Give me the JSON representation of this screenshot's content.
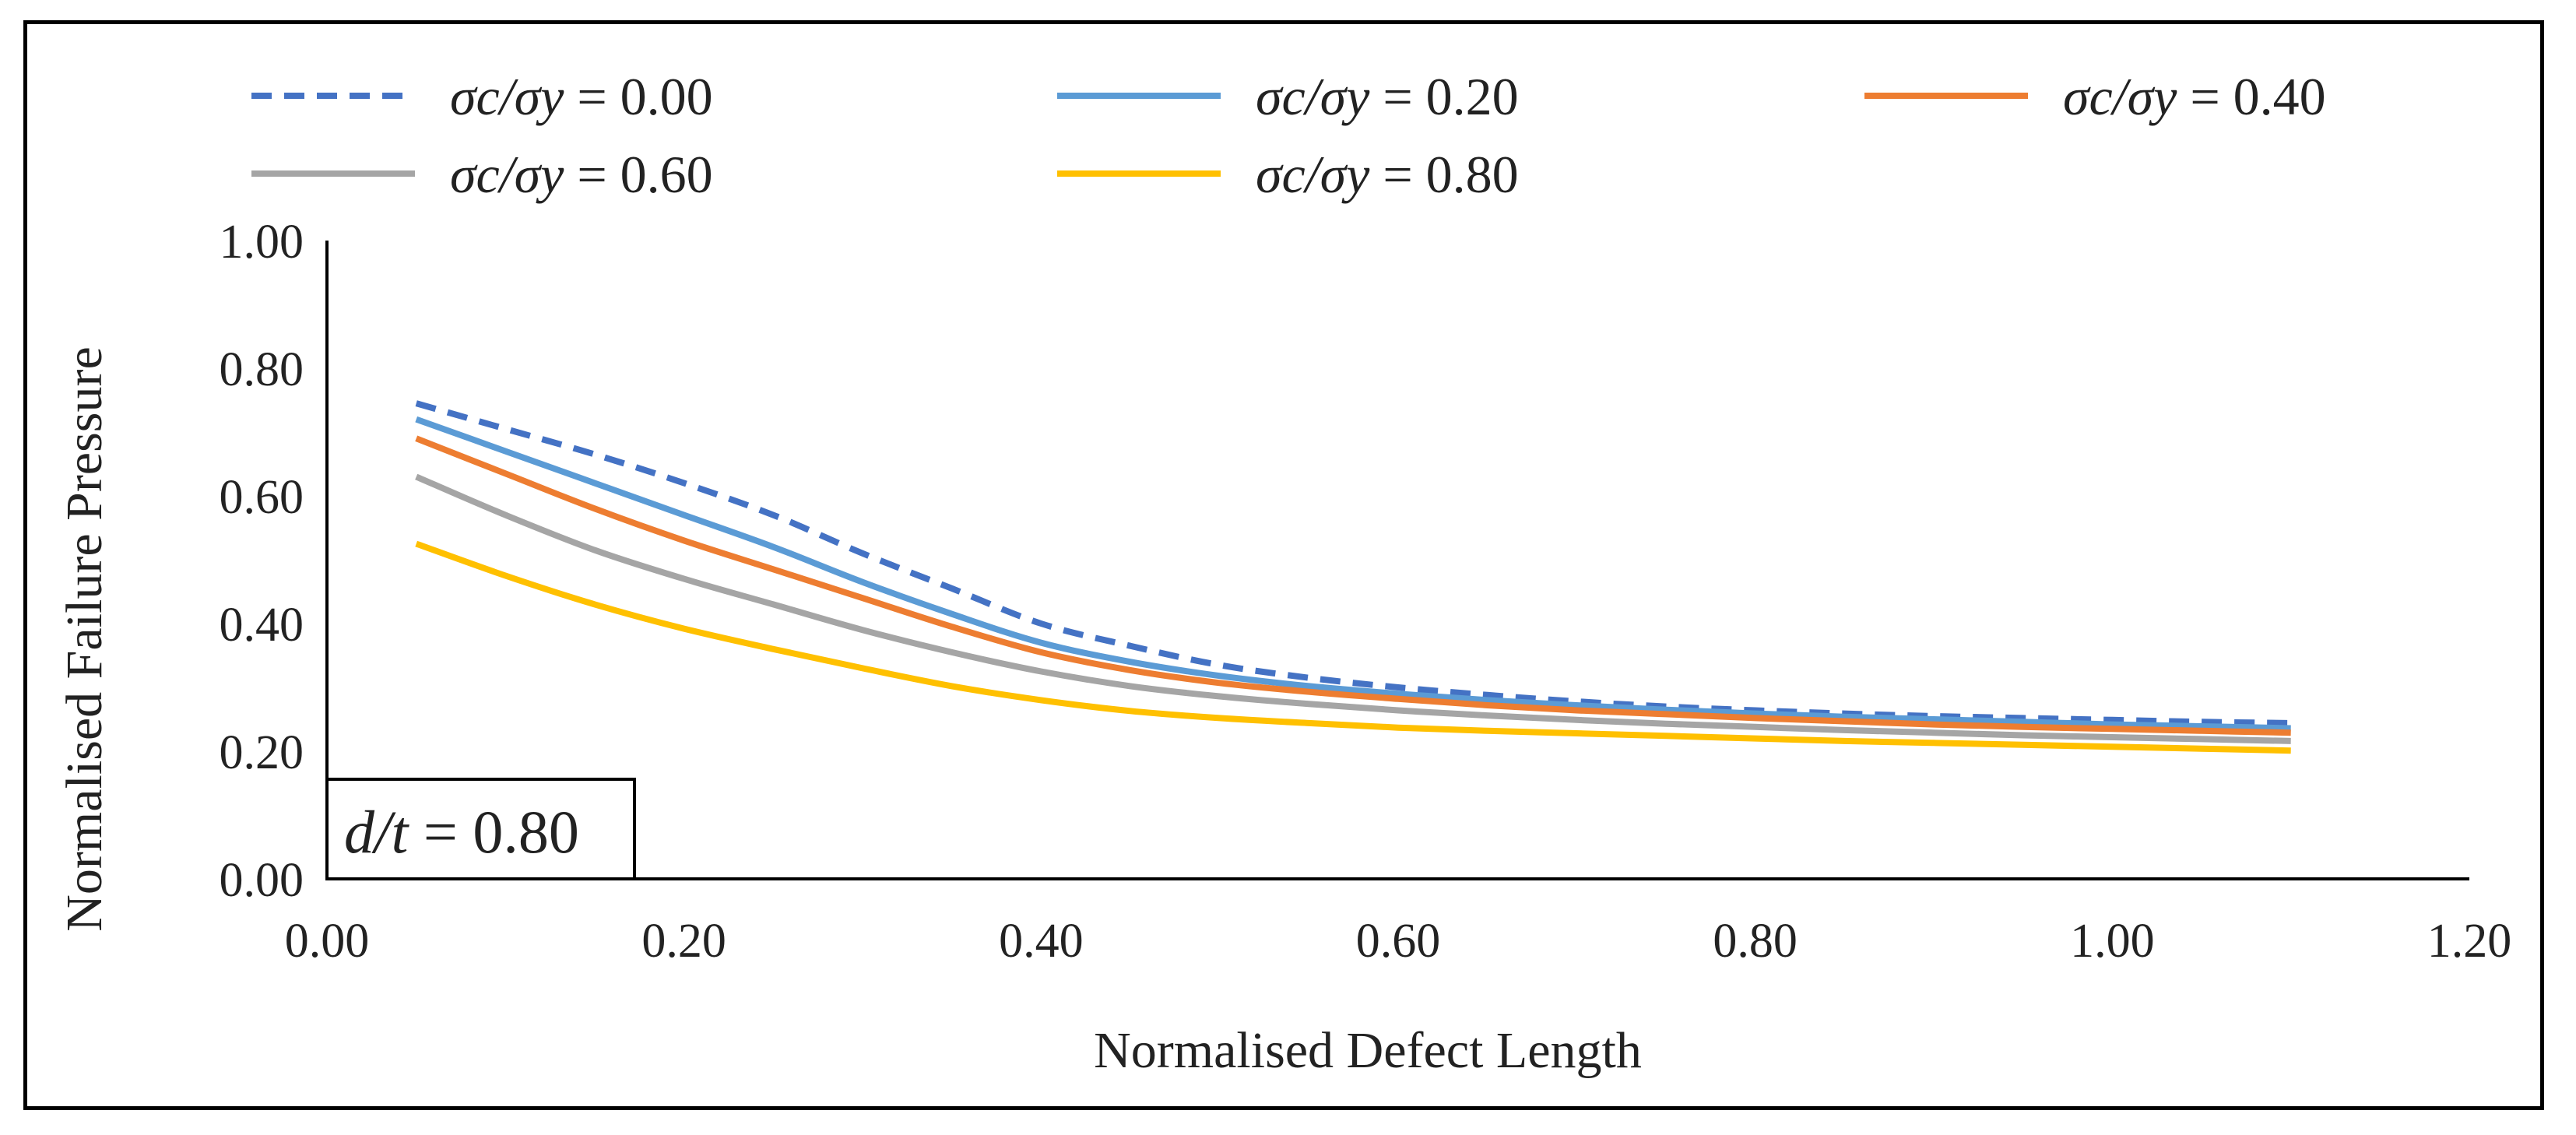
{
  "chart_data": {
    "type": "line",
    "title": "",
    "xlabel": "Normalised Defect Length",
    "ylabel": "Normalised Failure Pressure",
    "xlim": [
      0.0,
      1.2
    ],
    "ylim": [
      0.0,
      1.0
    ],
    "xticks": [
      "0.00",
      "0.20",
      "0.40",
      "0.60",
      "0.80",
      "1.00",
      "1.20"
    ],
    "yticks": [
      "0.00",
      "0.20",
      "0.40",
      "0.60",
      "0.80",
      "1.00"
    ],
    "grid": false,
    "legend_position": "top",
    "annotation": {
      "italic": "d/t",
      "rest": " = 0.80"
    },
    "series": [
      {
        "name": "σc/σy = 0.00",
        "legend_italic": "σc/σy",
        "legend_value": " = 0.00",
        "color": "#4472C4",
        "dashed": true,
        "x": [
          0.05,
          0.1,
          0.15,
          0.2,
          0.25,
          0.3,
          0.35,
          0.4,
          0.45,
          0.5,
          0.55,
          0.6,
          0.65,
          0.7,
          0.75,
          0.8,
          0.85,
          0.9,
          0.95,
          1.0,
          1.05,
          1.1
        ],
        "y": [
          0.745,
          0.705,
          0.665,
          0.62,
          0.57,
          0.51,
          0.455,
          0.4,
          0.365,
          0.335,
          0.315,
          0.3,
          0.288,
          0.278,
          0.27,
          0.264,
          0.259,
          0.255,
          0.252,
          0.249,
          0.246,
          0.244
        ]
      },
      {
        "name": "σc/σy = 0.20",
        "legend_italic": "σc/σy",
        "legend_value": " = 0.20",
        "color": "#5B9BD5",
        "dashed": false,
        "x": [
          0.05,
          0.1,
          0.15,
          0.2,
          0.25,
          0.3,
          0.35,
          0.4,
          0.45,
          0.5,
          0.55,
          0.6,
          0.65,
          0.7,
          0.75,
          0.8,
          0.85,
          0.9,
          0.95,
          1.0,
          1.05,
          1.1
        ],
        "y": [
          0.72,
          0.67,
          0.62,
          0.57,
          0.52,
          0.465,
          0.415,
          0.37,
          0.34,
          0.318,
          0.302,
          0.29,
          0.28,
          0.272,
          0.265,
          0.259,
          0.254,
          0.25,
          0.246,
          0.242,
          0.239,
          0.236
        ]
      },
      {
        "name": "σc/σy = 0.40",
        "legend_italic": "σc/σy",
        "legend_value": " = 0.40",
        "color": "#ED7D31",
        "dashed": false,
        "x": [
          0.05,
          0.1,
          0.15,
          0.2,
          0.25,
          0.3,
          0.35,
          0.4,
          0.45,
          0.5,
          0.55,
          0.6,
          0.65,
          0.7,
          0.75,
          0.8,
          0.85,
          0.9,
          0.95,
          1.0,
          1.05,
          1.1
        ],
        "y": [
          0.69,
          0.635,
          0.58,
          0.53,
          0.485,
          0.44,
          0.395,
          0.355,
          0.327,
          0.307,
          0.293,
          0.282,
          0.272,
          0.264,
          0.258,
          0.252,
          0.247,
          0.242,
          0.238,
          0.235,
          0.232,
          0.229
        ]
      },
      {
        "name": "σc/σy = 0.60",
        "legend_italic": "σc/σy",
        "legend_value": " = 0.60",
        "color": "#A5A5A5",
        "dashed": false,
        "x": [
          0.05,
          0.1,
          0.15,
          0.2,
          0.25,
          0.3,
          0.35,
          0.4,
          0.45,
          0.5,
          0.55,
          0.6,
          0.65,
          0.7,
          0.75,
          0.8,
          0.85,
          0.9,
          0.95,
          1.0,
          1.05,
          1.1
        ],
        "y": [
          0.63,
          0.57,
          0.515,
          0.47,
          0.43,
          0.39,
          0.355,
          0.325,
          0.302,
          0.286,
          0.274,
          0.264,
          0.256,
          0.249,
          0.243,
          0.238,
          0.233,
          0.229,
          0.225,
          0.222,
          0.219,
          0.216
        ]
      },
      {
        "name": "σc/σy = 0.80",
        "legend_italic": "σc/σy",
        "legend_value": " = 0.80",
        "color": "#FFC000",
        "dashed": false,
        "x": [
          0.05,
          0.1,
          0.15,
          0.2,
          0.25,
          0.3,
          0.35,
          0.4,
          0.45,
          0.5,
          0.55,
          0.6,
          0.65,
          0.7,
          0.75,
          0.8,
          0.85,
          0.9,
          0.95,
          1.0,
          1.05,
          1.1
        ],
        "y": [
          0.525,
          0.475,
          0.43,
          0.392,
          0.36,
          0.33,
          0.302,
          0.28,
          0.263,
          0.252,
          0.244,
          0.237,
          0.232,
          0.228,
          0.224,
          0.22,
          0.216,
          0.213,
          0.21,
          0.207,
          0.204,
          0.201
        ]
      }
    ]
  }
}
